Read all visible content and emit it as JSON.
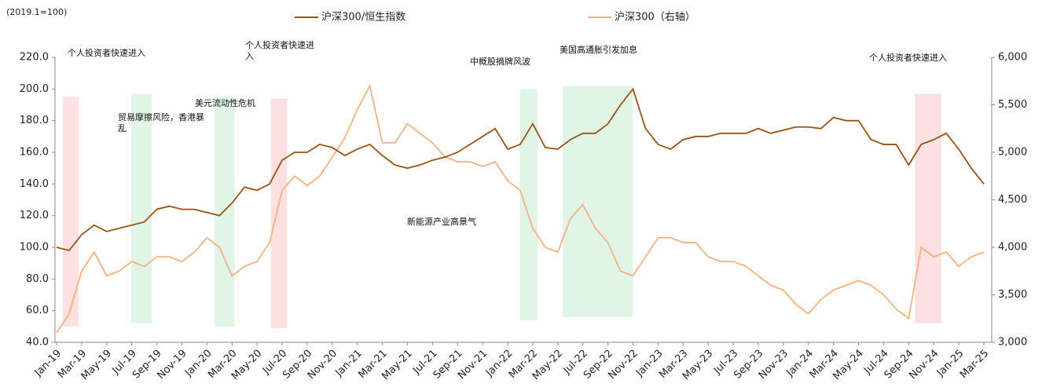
{
  "chart_data": {
    "type": "line",
    "unit_note": "(2019.1=100)",
    "categories": [
      "Jan-19",
      null,
      "Mar-19",
      null,
      "May-19",
      null,
      "Jul-19",
      null,
      "Sep-19",
      null,
      "Nov-19",
      null,
      "Jan-20",
      null,
      "Mar-20",
      null,
      "May-20",
      null,
      "Jul-20",
      null,
      "Sep-20",
      null,
      "Nov-20",
      null,
      "Jan-21",
      null,
      "Mar-21",
      null,
      "May-21",
      null,
      "Jul-21",
      null,
      "Sep-21",
      null,
      "Nov-21",
      null,
      "Jan-22",
      null,
      "Mar-22",
      null,
      "May-22",
      null,
      "Jul-22",
      null,
      "Sep-22",
      null,
      "Nov-22",
      null,
      "Jan-23",
      null,
      "Mar-23",
      null,
      "May-23",
      null,
      "Jul-23",
      null,
      "Sep-23",
      null,
      "Nov-23",
      null,
      "Jan-24",
      null,
      "Mar-24",
      null,
      "May-24",
      null,
      "Jul-24",
      null,
      "Sep-24",
      null,
      "Nov-24",
      null,
      "Jan-25",
      null,
      "Mar-25"
    ],
    "series": [
      {
        "name": "沪深300/恒生指数",
        "color": "#9a5216",
        "values": [
          100,
          98,
          108,
          114,
          110,
          112,
          114,
          116,
          124,
          126,
          124,
          124,
          122,
          120,
          128,
          138,
          136,
          140,
          155,
          160,
          160,
          165,
          163,
          158,
          162,
          165,
          158,
          152,
          150,
          152,
          155,
          157,
          160,
          165,
          170,
          175,
          162,
          165,
          178,
          163,
          162,
          168,
          172,
          172,
          178,
          190,
          200,
          175,
          165,
          162,
          168,
          170,
          170,
          172,
          172,
          172,
          175,
          172,
          174,
          176,
          176,
          175,
          182,
          180,
          180,
          168,
          165,
          165,
          152,
          165,
          168,
          172,
          162,
          150,
          140
        ]
      },
      {
        "name": "沪深300（右轴）",
        "color": "#f4b183",
        "axis": "y2",
        "values": [
          3100,
          3300,
          3750,
          3950,
          3700,
          3750,
          3850,
          3800,
          3900,
          3900,
          3850,
          3950,
          4100,
          4000,
          3700,
          3800,
          3850,
          4050,
          4600,
          4750,
          4650,
          4750,
          4950,
          5150,
          5450,
          5700,
          5100,
          5100,
          5300,
          5200,
          5100,
          4950,
          4900,
          4900,
          4850,
          4900,
          4700,
          4600,
          4200,
          4000,
          3950,
          4300,
          4450,
          4200,
          4050,
          3750,
          3700,
          3900,
          4100,
          4100,
          4050,
          4050,
          3900,
          3850,
          3850,
          3800,
          3700,
          3600,
          3550,
          3400,
          3300,
          3450,
          3550,
          3600,
          3650,
          3600,
          3500,
          3350,
          3250,
          4000,
          3900,
          3950,
          3800,
          3900,
          3950
        ]
      }
    ],
    "ylim": [
      40,
      220
    ],
    "yticks": [
      {
        "value": 40,
        "label": "40.0"
      },
      {
        "value": 60,
        "label": "60.0"
      },
      {
        "value": 80,
        "label": "80.0"
      },
      {
        "value": 100,
        "label": "100.0"
      },
      {
        "value": 120,
        "label": "120.0"
      },
      {
        "value": 140,
        "label": "140.0"
      },
      {
        "value": 160,
        "label": "160.0"
      },
      {
        "value": 180,
        "label": "180.0"
      },
      {
        "value": 200,
        "label": "200.0"
      },
      {
        "value": 220,
        "label": "220.0"
      }
    ],
    "y2lim": [
      3000,
      6000
    ],
    "y2ticks": [
      {
        "value": 3000,
        "label": "3,000"
      },
      {
        "value": 3500,
        "label": "3,500"
      },
      {
        "value": 4000,
        "label": "4,000"
      },
      {
        "value": 4500,
        "label": "4,500"
      },
      {
        "value": 5000,
        "label": "5,000"
      },
      {
        "value": 5500,
        "label": "5,500"
      },
      {
        "value": 6000,
        "label": "6,000"
      }
    ],
    "regions": [
      {
        "x": [
          0.5,
          1.75
        ],
        "y": [
          50,
          195
        ],
        "color": "#fde0e0"
      },
      {
        "x": [
          5.96,
          7.59
        ],
        "y": [
          52,
          197
        ],
        "color": "#e0f5e5"
      },
      {
        "x": [
          12.6,
          14.2
        ],
        "y": [
          50,
          195
        ],
        "color": "#e0f5e5"
      },
      {
        "x": [
          17.1,
          18.4
        ],
        "y": [
          49,
          194
        ],
        "color": "#fde0e0"
      },
      {
        "x": [
          37.0,
          38.4
        ],
        "y": [
          54,
          200
        ],
        "color": "#e0f5e5"
      },
      {
        "x": [
          40.4,
          46.0
        ],
        "y": [
          56,
          202
        ],
        "color": "#e0f5e5"
      },
      {
        "x": [
          68.5,
          70.6
        ],
        "y": [
          52,
          197
        ],
        "color": "#fde0e0"
      }
    ],
    "annotations": [
      "个人投资者快速进入",
      "贸易摩擦风险，香港暴乱",
      "美元流动性危机",
      "个人投资者快速进入",
      "中概股摘牌风波",
      "美国高通胀引发加息",
      "新能源产业高景气",
      "个人投资者快速进入"
    ]
  }
}
